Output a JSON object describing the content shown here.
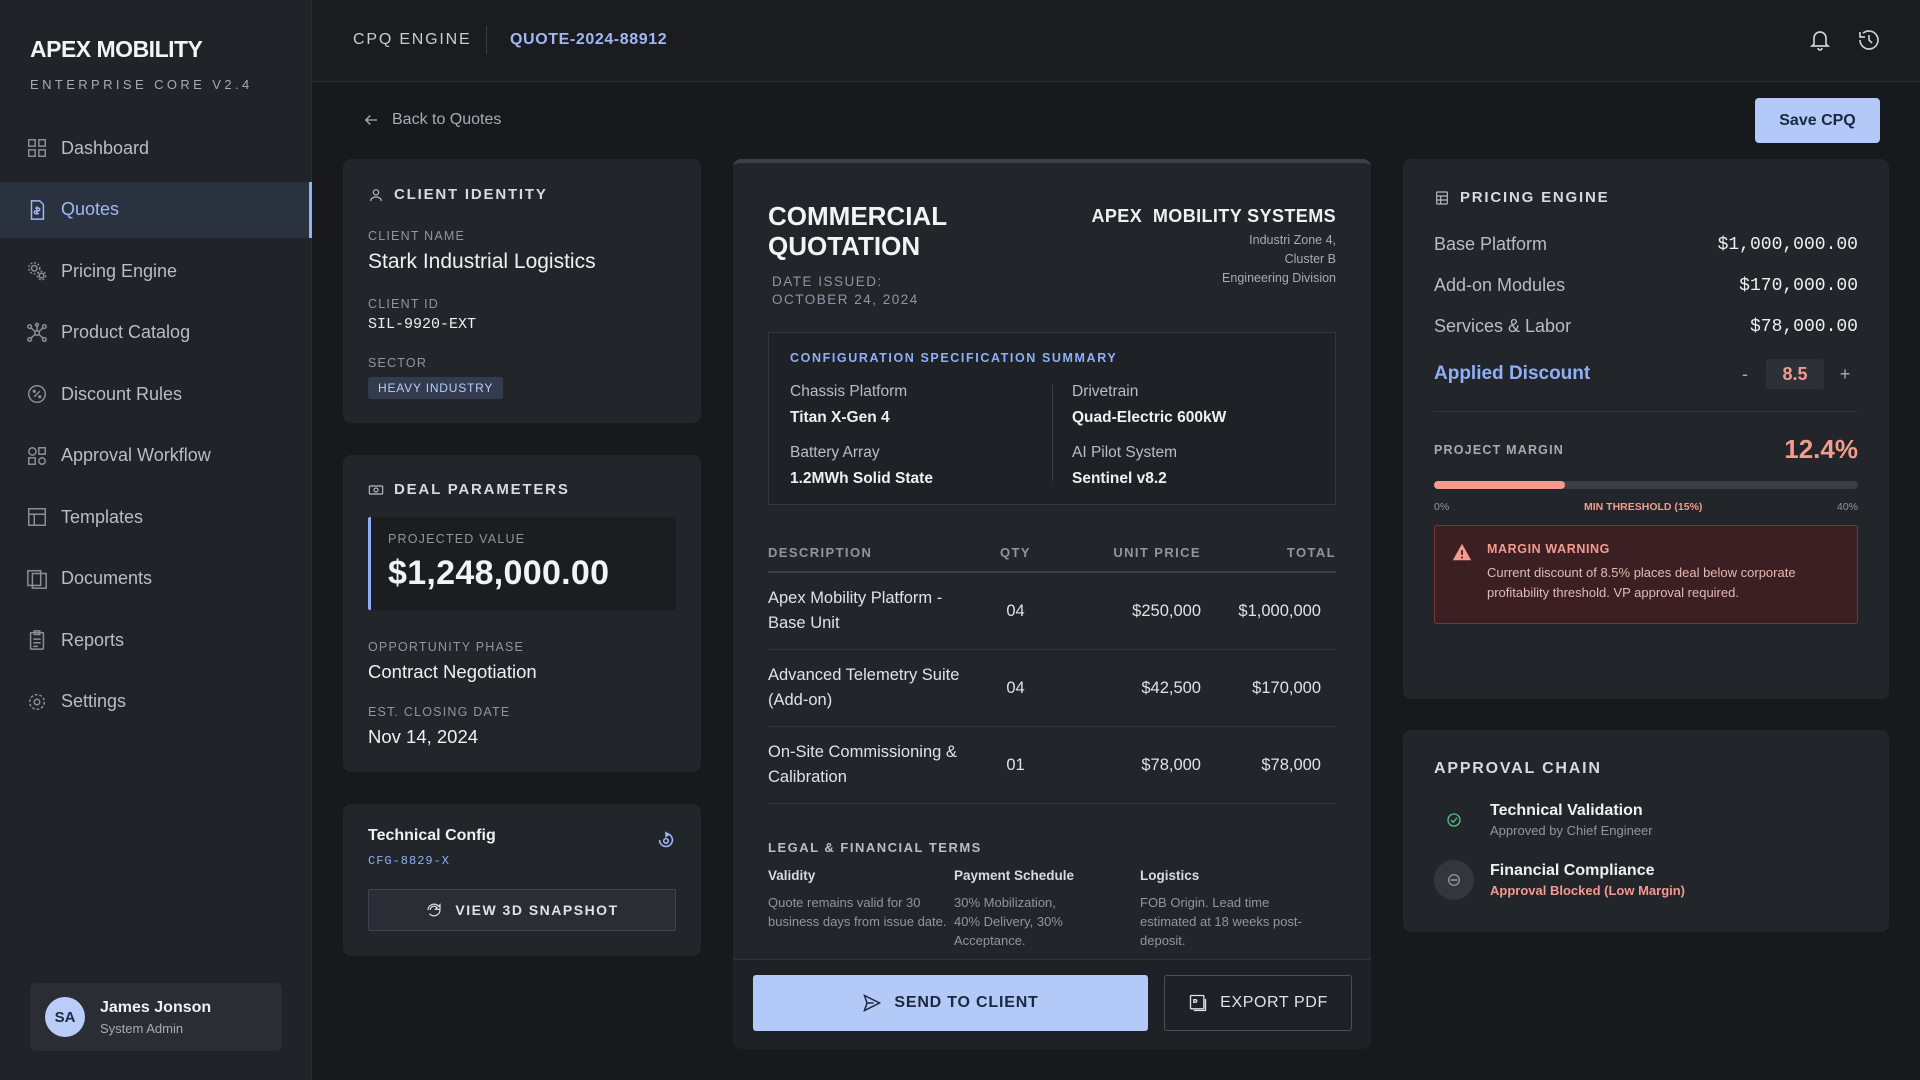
{
  "brand": {
    "name": "APEX MOBILITY",
    "subtitle": "ENTERPRISE CORE V2.4"
  },
  "nav": [
    {
      "label": "Dashboard",
      "icon": "dashboard-icon"
    },
    {
      "label": "Quotes",
      "icon": "quote-document-icon",
      "active": true
    },
    {
      "label": "Pricing Engine",
      "icon": "gears-icon"
    },
    {
      "label": "Product Catalog",
      "icon": "network-icon"
    },
    {
      "label": "Discount Rules",
      "icon": "discount-badge-icon"
    },
    {
      "label": "Approval Workflow",
      "icon": "workflow-icon"
    },
    {
      "label": "Templates",
      "icon": "template-icon"
    },
    {
      "label": "Documents",
      "icon": "documents-icon"
    },
    {
      "label": "Reports",
      "icon": "clipboard-icon"
    },
    {
      "label": "Settings",
      "icon": "gear-icon"
    }
  ],
  "user": {
    "initials": "SA",
    "name": "James Jonson",
    "role": "System Admin"
  },
  "topbar": {
    "section": "CPQ ENGINE",
    "quote_id": "QUOTE-2024-88912"
  },
  "back_label": "Back to Quotes",
  "save_label": "Save CPQ",
  "client": {
    "title": "CLIENT IDENTITY",
    "name_label": "CLIENT NAME",
    "name": "Stark Industrial Logistics",
    "id_label": "CLIENT ID",
    "id": "SIL-9920-EXT",
    "sector_label": "SECTOR",
    "sector": "HEAVY INDUSTRY"
  },
  "deal": {
    "title": "DEAL PARAMETERS",
    "projected_label": "PROJECTED VALUE",
    "projected_value": "$1,248,000.00",
    "phase_label": "OPPORTUNITY PHASE",
    "phase": "Contract Negotiation",
    "closing_label": "EST. CLOSING DATE",
    "closing": "Nov 14, 2024"
  },
  "tech": {
    "title": "Technical Config",
    "id": "CFG-8829-X",
    "button": "VIEW 3D SNAPSHOT"
  },
  "quote": {
    "title_line1": "COMMERCIAL",
    "title_line2": "QUOTATION",
    "date_label": "DATE ISSUED:",
    "date": "OCTOBER 24, 2024",
    "company": "APEX  MOBILITY SYSTEMS",
    "address": [
      "Industri Zone 4,",
      "Cluster B",
      "Engineering Division"
    ],
    "spec_title": "CONFIGURATION SPECIFICATION SUMMARY",
    "specs": [
      {
        "k": "Chassis Platform",
        "v": "Titan X-Gen 4"
      },
      {
        "k": "Drivetrain",
        "v": "Quad-Electric 600kW"
      },
      {
        "k": "Battery Array",
        "v": "1.2MWh Solid State"
      },
      {
        "k": "AI Pilot System",
        "v": "Sentinel v8.2"
      }
    ],
    "columns": {
      "desc": "DESCRIPTION",
      "qty": "QTY",
      "unit": "UNIT PRICE",
      "total": "TOTAL"
    },
    "lines": [
      {
        "desc": "Apex Mobility Platform - Base Unit",
        "qty": "04",
        "unit": "$250,000",
        "total": "$1,000,000"
      },
      {
        "desc": "Advanced Telemetry Suite (Add-on)",
        "qty": "04",
        "unit": "$42,500",
        "total": "$170,000"
      },
      {
        "desc": "On-Site Commissioning & Calibration",
        "qty": "01",
        "unit": "$78,000",
        "total": "$78,000"
      }
    ],
    "terms_title": "LEGAL & FINANCIAL TERMS",
    "terms": [
      {
        "h": "Validity",
        "b": "Quote remains valid for 30 business days from issue date."
      },
      {
        "h": "Payment Schedule",
        "b": "30% Mobilization, 40% Delivery, 30% Acceptance."
      },
      {
        "h": "Logistics",
        "b": "FOB Origin. Lead time estimated at 18 weeks post-deposit."
      }
    ],
    "send_label": "SEND TO CLIENT",
    "pdf_label": "EXPORT PDF"
  },
  "pricing": {
    "title": "PRICING ENGINE",
    "rows": [
      {
        "label": "Base Platform",
        "amount": "$1,000,000.00"
      },
      {
        "label": "Add-on Modules",
        "amount": "$170,000.00"
      },
      {
        "label": "Services & Labor",
        "amount": "$78,000.00"
      }
    ],
    "discount_label": "Applied Discount",
    "discount_minus": "-",
    "discount_value": "8.5",
    "discount_plus": "+",
    "margin_label": "PROJECT MARGIN",
    "margin_value": "12.4%",
    "margin_fraction_of_scale": 0.31,
    "scale_min": "0%",
    "threshold_label": "MIN THRESHOLD (15%)",
    "scale_max": "40%",
    "warning_title": "MARGIN WARNING",
    "warning_body": "Current discount of 8.5% places deal below corporate profitability threshold. VP approval required."
  },
  "approval": {
    "title": "APPROVAL CHAIN",
    "steps": [
      {
        "title": "Technical Validation",
        "status": "Approved by Chief Engineer",
        "state": "approved"
      },
      {
        "title": "Financial Compliance",
        "status": "Approval Blocked (Low Margin)",
        "state": "blocked"
      }
    ]
  },
  "colors": {
    "accent": "#8fb0f6",
    "danger": "#f49a8f",
    "success": "#4cc38a"
  }
}
